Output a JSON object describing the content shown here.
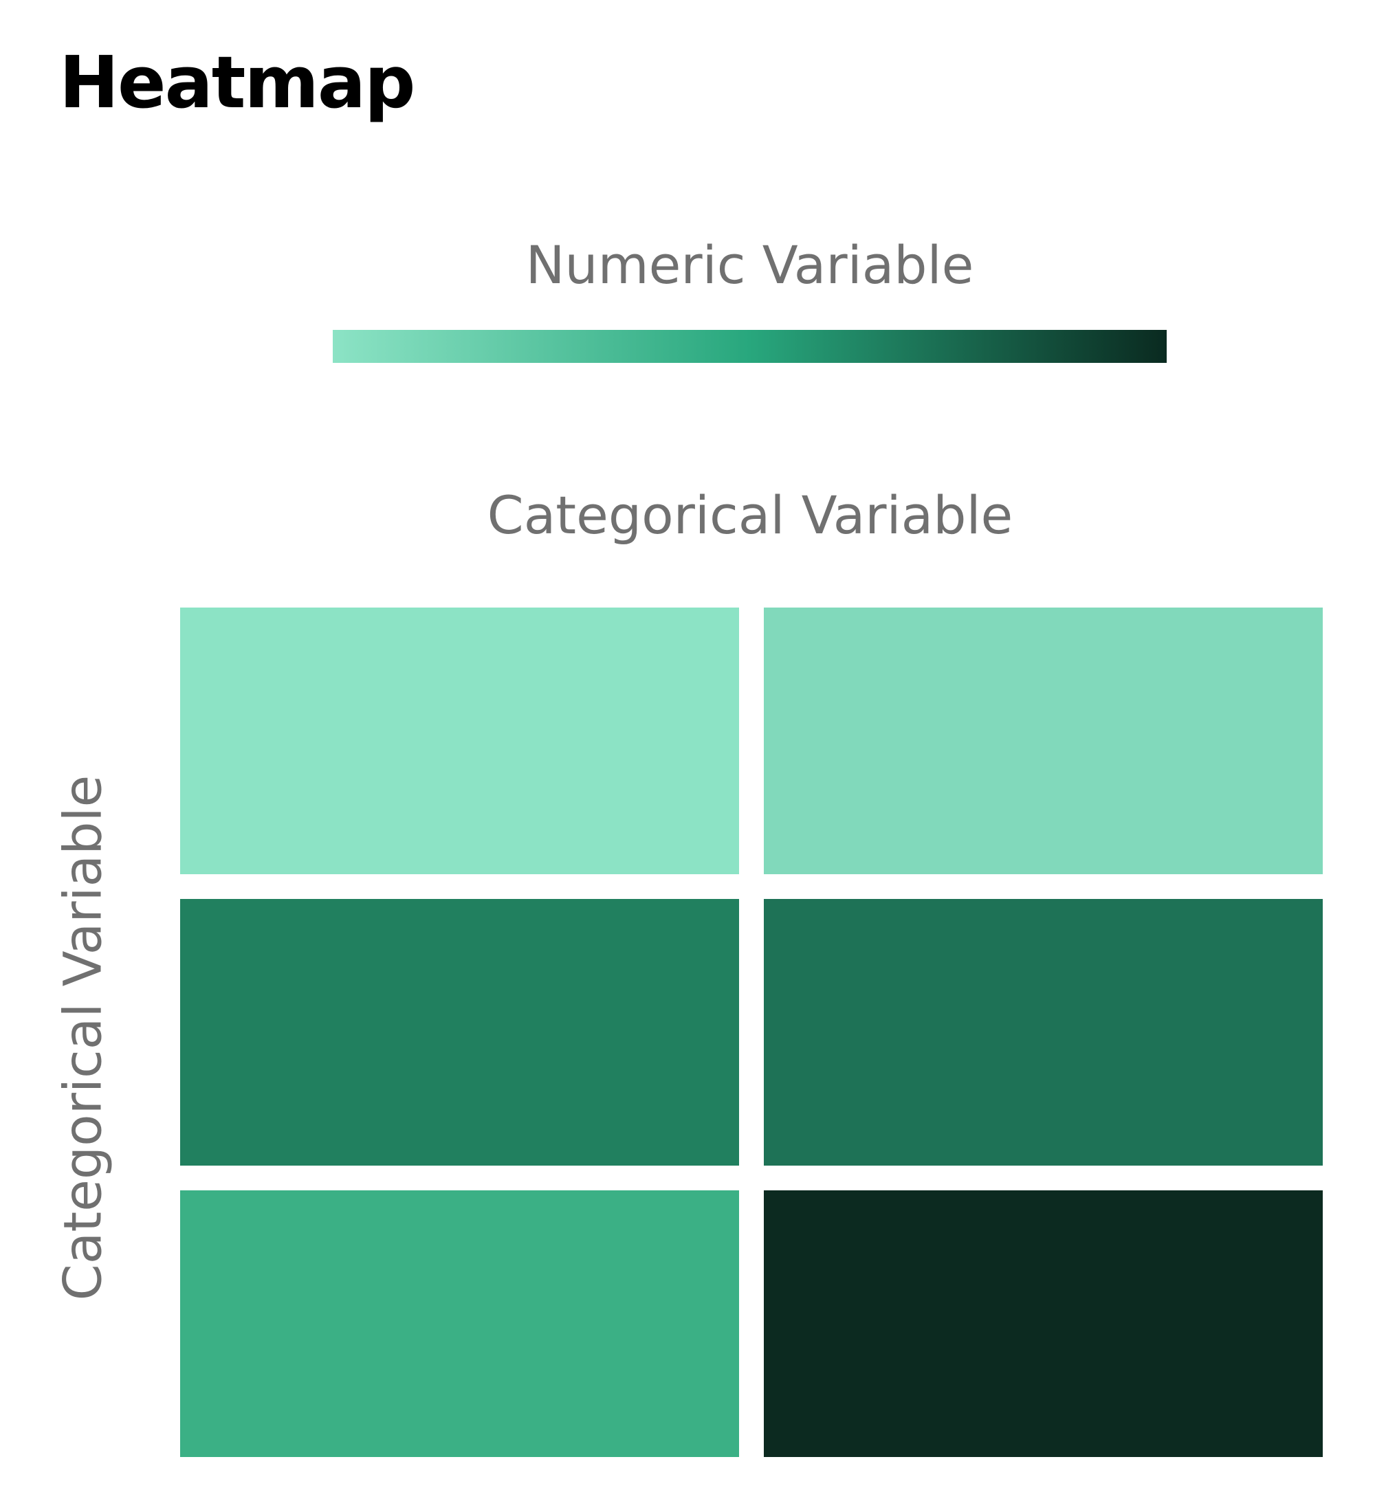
{
  "page": {
    "title": "Heatmap"
  },
  "chart_data": {
    "type": "heatmap",
    "title": "Heatmap",
    "xlabel": "Categorical Variable",
    "ylabel": "Categorical Variable",
    "colorbar": {
      "label": "Numeric Variable",
      "scale_min": 0,
      "scale_max": 1,
      "stops": [
        {
          "offset": 0.0,
          "color": "#8ce3c5"
        },
        {
          "offset": 0.5,
          "color": "#28a77d"
        },
        {
          "offset": 1.0,
          "color": "#0a2a20"
        }
      ]
    },
    "rows": 3,
    "cols": 2,
    "values": [
      [
        0.0,
        0.05
      ],
      [
        0.6,
        0.68
      ],
      [
        0.27,
        0.98
      ]
    ],
    "cell_colors": [
      [
        "#8ce3c5",
        "#81d9bb"
      ],
      [
        "#21805f",
        "#1e7256"
      ],
      [
        "#3bb085",
        "#0c2a20"
      ]
    ]
  }
}
